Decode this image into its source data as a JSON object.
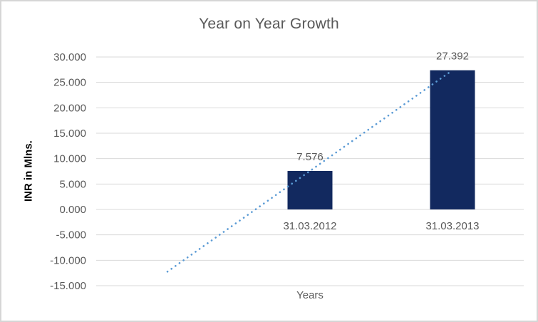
{
  "chart": {
    "title": "Year on Year Growth",
    "y_axis": {
      "title": "INR in Mlns.",
      "tick_labels": [
        "30.000",
        "25.000",
        "20.000",
        "15.000",
        "10.000",
        "5.000",
        "0.000",
        "-5.000",
        "-10.000",
        "-15.000"
      ]
    },
    "x_axis": {
      "title": "Years"
    },
    "colors": {
      "bar": "#12295f",
      "trendline": "#5b9bd5",
      "gridline": "#d9d9d9",
      "label_text": "#595959",
      "axis_title_text": "#000000",
      "frame_border": "#d6d6d6"
    }
  },
  "chart_data": {
    "type": "bar",
    "title": "Year on Year Growth",
    "categories": [
      "31.03.2012",
      "31.03.2013"
    ],
    "values": [
      7.576,
      27.392
    ],
    "data_labels": [
      "7.576",
      "27.392"
    ],
    "xlabel": "Years",
    "ylabel": "INR in Mlns.",
    "ylim": [
      -15,
      30
    ],
    "ytick_step": 5,
    "grid": true,
    "legend": false,
    "trendline": {
      "type": "linear",
      "style": "dotted",
      "color": "#5b9bd5",
      "extends_back_one_period": true
    }
  }
}
